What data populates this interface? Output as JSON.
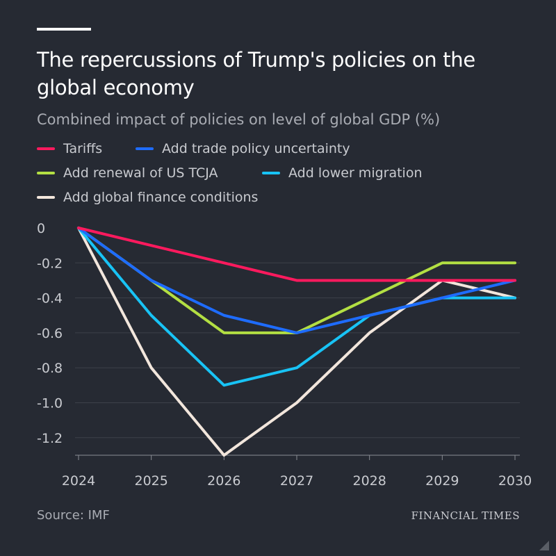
{
  "header": {
    "title": "The repercussions of Trump's policies on the global economy",
    "subtitle": "Combined impact of policies on level of global GDP (%)"
  },
  "footer": {
    "source": "Source: IMF",
    "logo": "FINANCIAL TIMES"
  },
  "chart_data": {
    "type": "line",
    "title": "The repercussions of Trump's policies on the global economy",
    "subtitle": "Combined impact of policies on level of global GDP (%)",
    "x": [
      "2024",
      "2025",
      "2026",
      "2027",
      "2028",
      "2029",
      "2030"
    ],
    "yticks": [
      "0",
      "-0.2",
      "-0.4",
      "-0.6",
      "-0.8",
      "-1.0",
      "-1.2"
    ],
    "ytick_values": [
      0,
      -0.2,
      -0.4,
      -0.6,
      -0.8,
      -1.0,
      -1.2
    ],
    "ylim": [
      -1.3,
      0
    ],
    "grid": true,
    "legend_placement": "top",
    "series": [
      {
        "name": "Tariffs",
        "color": "#ff1a5e",
        "values": [
          0,
          -0.1,
          -0.2,
          -0.3,
          -0.3,
          -0.3,
          -0.3
        ]
      },
      {
        "name": "Add trade policy uncertainty",
        "color": "#1e6cff",
        "values": [
          0,
          -0.3,
          -0.5,
          -0.6,
          -0.5,
          -0.4,
          -0.3
        ]
      },
      {
        "name": "Add renewal of US TCJA",
        "color": "#b3df43",
        "values": [
          0,
          -0.3,
          -0.6,
          -0.6,
          -0.4,
          -0.2,
          -0.2
        ]
      },
      {
        "name": "Add lower migration",
        "color": "#18c3f5",
        "values": [
          0,
          -0.5,
          -0.9,
          -0.8,
          -0.5,
          -0.4,
          -0.4
        ]
      },
      {
        "name": "Add global finance conditions",
        "color": "#f2e6dc",
        "values": [
          0,
          -0.8,
          -1.3,
          -1.0,
          -0.6,
          -0.3,
          -0.4
        ]
      }
    ]
  }
}
